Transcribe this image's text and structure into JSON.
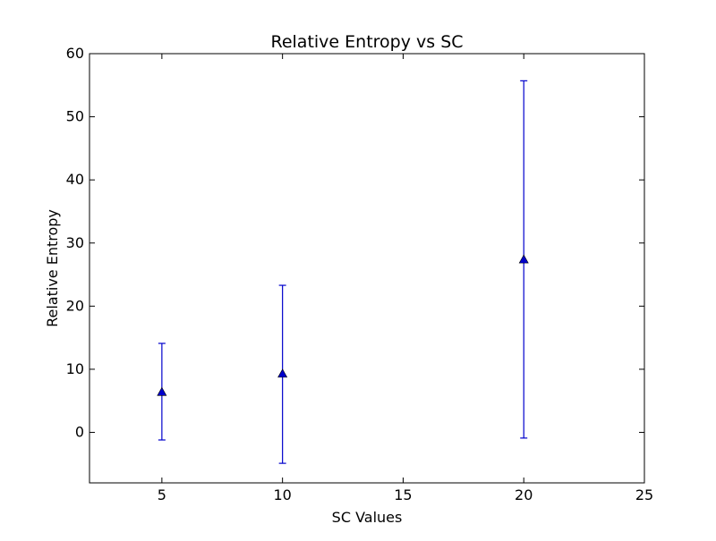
{
  "chart_data": {
    "type": "scatter",
    "title": "Relative Entropy vs SC",
    "xlabel": "SC Values",
    "ylabel": "Relative Entropy",
    "xlim": [
      2,
      25
    ],
    "ylim": [
      -8,
      60
    ],
    "xticks": [
      5,
      10,
      15,
      20,
      25
    ],
    "yticks": [
      0,
      10,
      20,
      30,
      40,
      50,
      60
    ],
    "grid": false,
    "marker": "triangle-up",
    "color": "#0000cc",
    "points": [
      {
        "x": 5,
        "y": 6.4,
        "err_low": -1.2,
        "err_high": 14.1
      },
      {
        "x": 10,
        "y": 9.3,
        "err_low": -4.9,
        "err_high": 23.3
      },
      {
        "x": 20,
        "y": 27.4,
        "err_low": -0.9,
        "err_high": 55.7
      }
    ]
  }
}
